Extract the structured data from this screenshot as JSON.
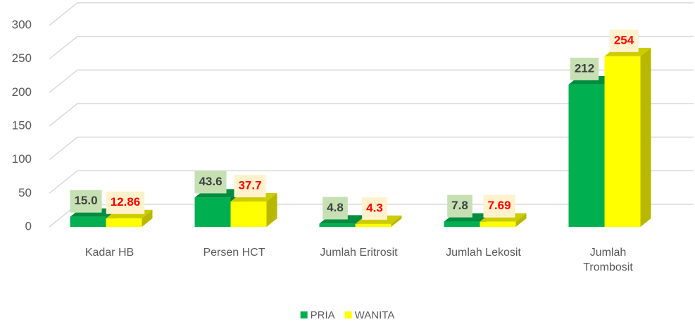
{
  "chart_data": {
    "type": "bar3d",
    "categories": [
      "Kadar HB",
      "Persen HCT",
      "Jumlah Eritrosit",
      "Jumlah Lekosit",
      "Jumlah Trombosit"
    ],
    "series": [
      {
        "name": "PRIA",
        "color": "#00b050",
        "label_color": "#404040",
        "label_bg": "#c6e0b4",
        "values": [
          15.0,
          43.6,
          4.8,
          7.8,
          212
        ],
        "value_labels": [
          "15.0",
          "43.6",
          "4.8",
          "7.8",
          "212"
        ]
      },
      {
        "name": "WANITA",
        "color": "#ffff00",
        "label_color": "#ff0000",
        "label_bg": "#fff2cc",
        "values": [
          12.86,
          37.7,
          4.3,
          7.69,
          254
        ]
      }
    ],
    "ylim": [
      0,
      300
    ],
    "yticks": [
      0,
      50,
      100,
      150,
      200,
      250,
      300
    ],
    "grid": true,
    "legend": "bottom"
  }
}
